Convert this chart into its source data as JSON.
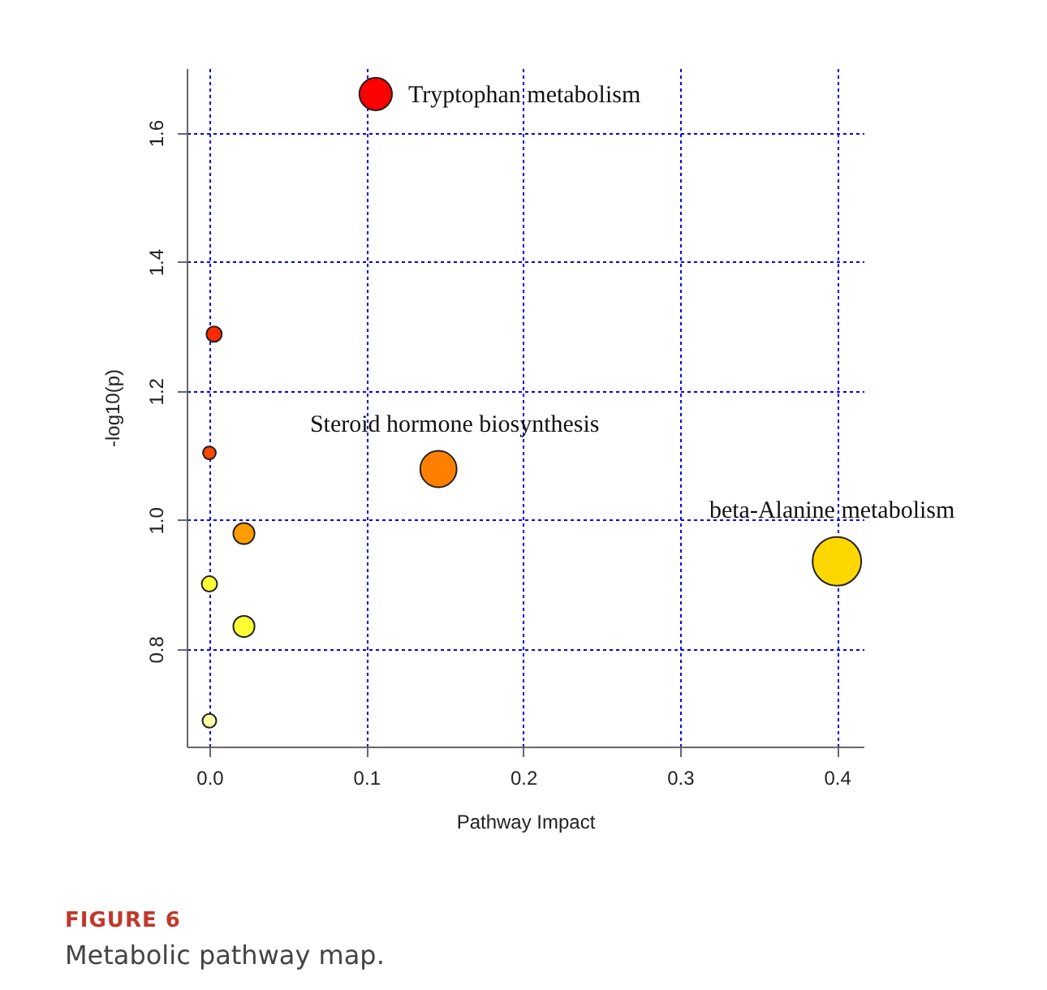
{
  "chart_data": {
    "type": "bubble",
    "xlabel": "Pathway Impact",
    "ylabel": "-log10(p)",
    "x": [
      0.106,
      0.003,
      0.0,
      0.146,
      0.022,
      0.0,
      0.022,
      0.4,
      0.0
    ],
    "values": [
      1.66,
      1.288,
      1.104,
      1.079,
      0.979,
      0.901,
      0.835,
      0.936,
      0.689
    ],
    "sizes": [
      0.45,
      0.1,
      0.07,
      0.56,
      0.19,
      0.1,
      0.19,
      1,
      0.08
    ],
    "colors": [
      "#ff0000",
      "#ff2a00",
      "#ff4800",
      "#ff7f00",
      "#ff9a00",
      "#ffff33",
      "#ffff33",
      "#ffd700",
      "#ffffaa"
    ],
    "xlim": [
      -0.0145,
      0.417
    ],
    "ylim": [
      0.649,
      1.7
    ],
    "xticks": [
      {
        "value": 0,
        "label": "0.0"
      },
      0.1,
      0.2,
      0.3,
      0.4
    ],
    "yticks": [
      {
        "value": 0.8,
        "label": "0.8"
      },
      {
        "value": 1,
        "label": "1.0"
      },
      1.2,
      1.4,
      1.6
    ],
    "grid": true,
    "legend": false,
    "marker": "circle",
    "annotations": [
      {
        "text": "Tryptophan metabolism",
        "x": 0.106,
        "y": 1.66
      },
      {
        "text": "Steroid hormone biosynthesis",
        "x": 0.146,
        "y": 1.079
      },
      {
        "text": "beta-Alanine metabolism",
        "x": 0.4,
        "y": 0.936
      },
      "FIGURE 6",
      "Metabolic pathway map."
    ]
  }
}
